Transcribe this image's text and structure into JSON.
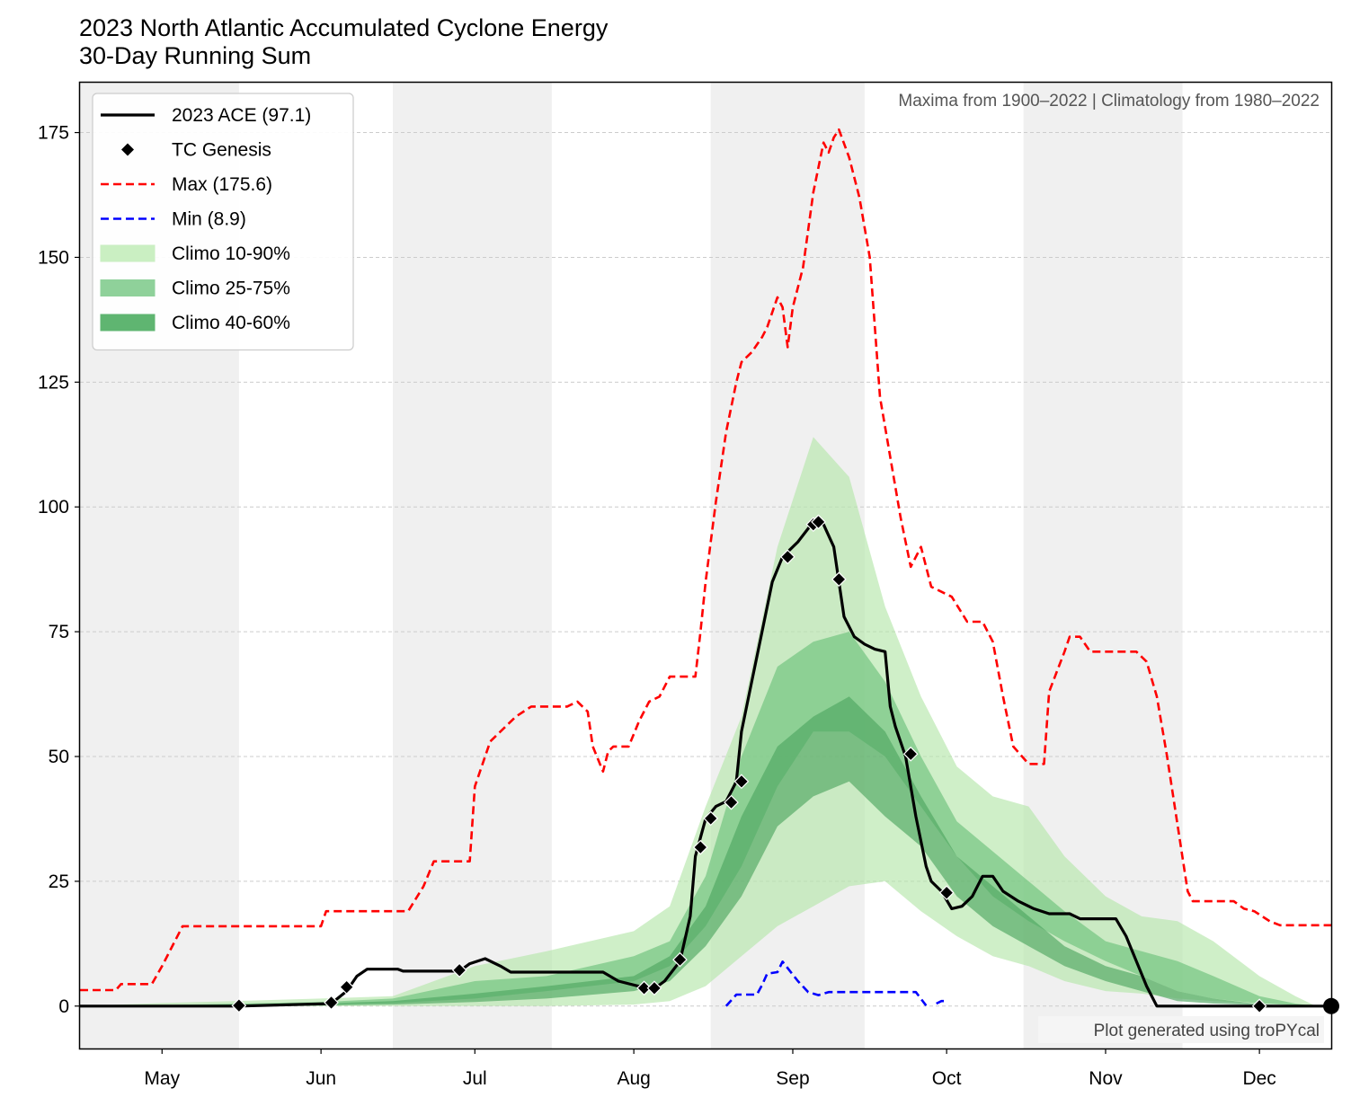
{
  "chart_data": {
    "type": "line",
    "title": "2023 North Atlantic Accumulated Cyclone Energy",
    "subtitle": "30-Day Running Sum",
    "annotation_top": "Maxima from 1900–2022 | Climatology from 1980–2022",
    "annotation_bottom": "Plot generated using troPYcal",
    "ylim": [
      -8.5,
      185
    ],
    "yticks": [
      0,
      25,
      50,
      75,
      100,
      125,
      150,
      175
    ],
    "xlim": [
      "Apr 15",
      "Dec 15"
    ],
    "xticks": [
      {
        "label": "May",
        "date": "May 1"
      },
      {
        "label": "Jun",
        "date": "Jun 1"
      },
      {
        "label": "Jul",
        "date": "Jul 1"
      },
      {
        "label": "Aug",
        "date": "Aug 1"
      },
      {
        "label": "Sep",
        "date": "Sep 1"
      },
      {
        "label": "Oct",
        "date": "Oct 1"
      },
      {
        "label": "Nov",
        "date": "Nov 1"
      },
      {
        "label": "Dec",
        "date": "Dec 1"
      }
    ],
    "shaded_periods": [
      [
        "Apr 15",
        "May 16"
      ],
      [
        "Jun 15",
        "Jul 16"
      ],
      [
        "Aug 16",
        "Sep 15"
      ],
      [
        "Oct 16",
        "Nov 16"
      ]
    ],
    "grid": "horizontal dashed",
    "legend": {
      "placement": "top-left",
      "items": [
        {
          "label": "2023 ACE (97.1)",
          "kind": "solid-line",
          "color": "#000000"
        },
        {
          "label": "TC Genesis",
          "kind": "diamond",
          "color": "#000000"
        },
        {
          "label": "Max (175.6)",
          "kind": "dashed-line",
          "color": "#ff0000"
        },
        {
          "label": "Min (8.9)",
          "kind": "dashed-line",
          "color": "#0000ff"
        },
        {
          "label": "Climo 10-90%",
          "kind": "patch",
          "color": "#caefc2"
        },
        {
          "label": "Climo 25-75%",
          "kind": "patch",
          "color": "#8fd19a"
        },
        {
          "label": "Climo 40-60%",
          "kind": "patch",
          "color": "#5fb571"
        }
      ]
    },
    "series": [
      {
        "name": "2023 ACE (97.1)",
        "color": "#000000",
        "points": [
          [
            "Apr 15",
            0
          ],
          [
            "May 16",
            0
          ],
          [
            "Jun 3",
            0.5
          ],
          [
            "Jun 6",
            3
          ],
          [
            "Jun 8",
            6
          ],
          [
            "Jun 10",
            7.4
          ],
          [
            "Jun 16",
            7.4
          ],
          [
            "Jun 17",
            7
          ],
          [
            "Jun 28",
            7
          ],
          [
            "Jun 30",
            8.5
          ],
          [
            "Jul 3",
            9.5
          ],
          [
            "Jul 6",
            8
          ],
          [
            "Jul 8",
            6.8
          ],
          [
            "Jul 26",
            6.8
          ],
          [
            "Jul 29",
            5
          ],
          [
            "Aug 3",
            3.7
          ],
          [
            "Aug 5",
            3.5
          ],
          [
            "Aug 7",
            5
          ],
          [
            "Aug 10",
            9
          ],
          [
            "Aug 12",
            18
          ],
          [
            "Aug 13",
            30
          ],
          [
            "Aug 15",
            37.5
          ],
          [
            "Aug 17",
            40
          ],
          [
            "Aug 19",
            41
          ],
          [
            "Aug 21",
            45
          ],
          [
            "Aug 22",
            55
          ],
          [
            "Aug 24",
            65
          ],
          [
            "Aug 26",
            75
          ],
          [
            "Aug 28",
            85
          ],
          [
            "Aug 30",
            90
          ],
          [
            "Sep 2",
            93
          ],
          [
            "Sep 5",
            97
          ],
          [
            "Sep 7",
            96.5
          ],
          [
            "Sep 9",
            92
          ],
          [
            "Sep 10",
            85
          ],
          [
            "Sep 11",
            78
          ],
          [
            "Sep 13",
            74
          ],
          [
            "Sep 15",
            72.5
          ],
          [
            "Sep 17",
            71.5
          ],
          [
            "Sep 19",
            71
          ],
          [
            "Sep 20",
            60
          ],
          [
            "Sep 21",
            56
          ],
          [
            "Sep 23",
            50
          ],
          [
            "Sep 25",
            38
          ],
          [
            "Sep 27",
            28
          ],
          [
            "Sep 28",
            25
          ],
          [
            "Sep 30",
            23
          ],
          [
            "Oct 2",
            19.5
          ],
          [
            "Oct 4",
            20
          ],
          [
            "Oct 6",
            22
          ],
          [
            "Oct 8",
            26
          ],
          [
            "Oct 10",
            26
          ],
          [
            "Oct 12",
            23
          ],
          [
            "Oct 15",
            21
          ],
          [
            "Oct 18",
            19.5
          ],
          [
            "Oct 21",
            18.5
          ],
          [
            "Oct 25",
            18.5
          ],
          [
            "Oct 27",
            17.5
          ],
          [
            "Nov 3",
            17.5
          ],
          [
            "Nov 5",
            14
          ],
          [
            "Nov 7",
            9
          ],
          [
            "Nov 9",
            4
          ],
          [
            "Nov 11",
            0
          ],
          [
            "Dec 15",
            0
          ]
        ]
      },
      {
        "name": "Max (175.6)",
        "color": "#ff0000",
        "points": [
          [
            "Apr 15",
            3.2
          ],
          [
            "Apr 22",
            3.2
          ],
          [
            "Apr 23",
            4.4
          ],
          [
            "Apr 29",
            4.4
          ],
          [
            "May 1",
            8
          ],
          [
            "May 5",
            16
          ],
          [
            "Jun 1",
            16
          ],
          [
            "Jun 2",
            19
          ],
          [
            "Jun 18",
            19
          ],
          [
            "Jun 21",
            24
          ],
          [
            "Jun 23",
            29
          ],
          [
            "Jun 30",
            29
          ],
          [
            "Jul 1",
            44
          ],
          [
            "Jul 4",
            53
          ],
          [
            "Jul 6",
            55
          ],
          [
            "Jul 9",
            58
          ],
          [
            "Jul 12",
            60
          ],
          [
            "Jul 19",
            60
          ],
          [
            "Jul 21",
            61
          ],
          [
            "Jul 23",
            59
          ],
          [
            "Jul 24",
            52
          ],
          [
            "Jul 26",
            47
          ],
          [
            "Jul 27",
            51
          ],
          [
            "Jul 28",
            52
          ],
          [
            "Jul 31",
            52
          ],
          [
            "Aug 2",
            57
          ],
          [
            "Aug 4",
            61
          ],
          [
            "Aug 6",
            62
          ],
          [
            "Aug 8",
            66
          ],
          [
            "Aug 13",
            66
          ],
          [
            "Aug 14",
            75
          ],
          [
            "Aug 15",
            85
          ],
          [
            "Aug 17",
            101
          ],
          [
            "Aug 19",
            115
          ],
          [
            "Aug 21",
            125
          ],
          [
            "Aug 22",
            129
          ],
          [
            "Aug 24",
            131
          ],
          [
            "Aug 26",
            134
          ],
          [
            "Aug 27",
            136
          ],
          [
            "Aug 29",
            142
          ],
          [
            "Aug 30",
            140
          ],
          [
            "Aug 31",
            132
          ],
          [
            "Sep 1",
            140
          ],
          [
            "Sep 3",
            148
          ],
          [
            "Sep 5",
            163
          ],
          [
            "Sep 7",
            173
          ],
          [
            "Sep 8",
            171
          ],
          [
            "Sep 9",
            174
          ],
          [
            "Sep 10",
            175.6
          ],
          [
            "Sep 12",
            170
          ],
          [
            "Sep 14",
            162
          ],
          [
            "Sep 16",
            150
          ],
          [
            "Sep 18",
            122
          ],
          [
            "Sep 20",
            110
          ],
          [
            "Sep 22",
            98
          ],
          [
            "Sep 24",
            88
          ],
          [
            "Sep 26",
            92
          ],
          [
            "Sep 28",
            84
          ],
          [
            "Oct 2",
            82
          ],
          [
            "Oct 5",
            77
          ],
          [
            "Oct 8",
            77
          ],
          [
            "Oct 10",
            73
          ],
          [
            "Oct 12",
            62
          ],
          [
            "Oct 14",
            52
          ],
          [
            "Oct 17",
            48.5
          ],
          [
            "Oct 20",
            48.5
          ],
          [
            "Oct 21",
            63
          ],
          [
            "Oct 24",
            71
          ],
          [
            "Oct 25",
            74
          ],
          [
            "Oct 27",
            74
          ],
          [
            "Oct 29",
            71
          ],
          [
            "Nov 7",
            71
          ],
          [
            "Nov 9",
            69
          ],
          [
            "Nov 11",
            62
          ],
          [
            "Nov 13",
            50
          ],
          [
            "Nov 17",
            23
          ],
          [
            "Nov 18",
            21
          ],
          [
            "Nov 26",
            21
          ],
          [
            "Nov 28",
            19.5
          ],
          [
            "Nov 30",
            19
          ],
          [
            "Dec 3",
            17
          ],
          [
            "Dec 5",
            16.2
          ],
          [
            "Dec 15",
            16.2
          ]
        ]
      },
      {
        "name": "Min (8.9)",
        "color": "#0000ff",
        "points": [
          [
            "Aug 19",
            0
          ],
          [
            "Aug 21",
            2.3
          ],
          [
            "Aug 25",
            2.3
          ],
          [
            "Aug 26",
            4.2
          ],
          [
            "Aug 27",
            6.5
          ],
          [
            "Aug 29",
            6.8
          ],
          [
            "Aug 30",
            8.9
          ],
          [
            "Sep 2",
            5
          ],
          [
            "Sep 4",
            2.8
          ],
          [
            "Sep 6",
            2.2
          ],
          [
            "Sep 8",
            2.8
          ],
          [
            "Sep 25",
            2.8
          ],
          [
            "Sep 27",
            0.1
          ]
        ]
      },
      {
        "name": "Min (8.9) segment",
        "color": "#0000ff",
        "points": [
          [
            "Sep 29",
            0.5
          ],
          [
            "Sep 30",
            1
          ],
          [
            "Oct 1",
            1
          ]
        ]
      }
    ],
    "genesis_points": [
      [
        "May 16",
        0.1
      ],
      [
        "Jun 3",
        0.7
      ],
      [
        "Jun 6",
        3.8
      ],
      [
        "Jun 28",
        7.2
      ],
      [
        "Aug 3",
        3.6
      ],
      [
        "Aug 5",
        3.6
      ],
      [
        "Aug 10",
        9.3
      ],
      [
        "Aug 14",
        31.8
      ],
      [
        "Aug 16",
        37.6
      ],
      [
        "Aug 20",
        40.8
      ],
      [
        "Aug 22",
        45
      ],
      [
        "Aug 31",
        90
      ],
      [
        "Sep 5",
        96.5
      ],
      [
        "Sep 6",
        97
      ],
      [
        "Sep 10",
        85.5
      ],
      [
        "Sep 24",
        50.5
      ],
      [
        "Oct 1",
        22.7
      ],
      [
        "Dec 1",
        0
      ]
    ],
    "climatology": {
      "dates": [
        "Apr 15",
        "May 1",
        "May 15",
        "Jun 1",
        "Jun 15",
        "Jul 1",
        "Jul 15",
        "Aug 1",
        "Aug 8",
        "Aug 15",
        "Aug 22",
        "Aug 29",
        "Sep 5",
        "Sep 12",
        "Sep 19",
        "Sep 26",
        "Oct 3",
        "Oct 10",
        "Oct 17",
        "Oct 24",
        "Nov 1",
        "Nov 8",
        "Nov 15",
        "Nov 22",
        "Dec 1",
        "Dec 8",
        "Dec 12"
      ],
      "p10": [
        0,
        0,
        0,
        0,
        0,
        0,
        0,
        0.3,
        1,
        4,
        10,
        16,
        20,
        24,
        25,
        19,
        14,
        10,
        8,
        5,
        3,
        2.5,
        1.5,
        1,
        0.5,
        0.2,
        0
      ],
      "p90": [
        0,
        0.6,
        1,
        1.5,
        2,
        8,
        11,
        15,
        20,
        40,
        58,
        92,
        114,
        106,
        80,
        62,
        48,
        42,
        40,
        30,
        22,
        18,
        17,
        13,
        6,
        2,
        0
      ],
      "p25": [
        0,
        0,
        0,
        0.3,
        0.6,
        1.5,
        3,
        5,
        8,
        16,
        28,
        44,
        55,
        55,
        50,
        40,
        30,
        22,
        17,
        13,
        9,
        6,
        3,
        1.5,
        0.5,
        0.2,
        0
      ],
      "p75": [
        0,
        0.2,
        0.5,
        0.8,
        1.5,
        5,
        6,
        10,
        13,
        26,
        50,
        68,
        73,
        75,
        65,
        50,
        37,
        31,
        25,
        19,
        13,
        11,
        9,
        6,
        2,
        0.5,
        0
      ],
      "p40": [
        0,
        0,
        0,
        0.1,
        0.3,
        0.8,
        1.5,
        3,
        5,
        12,
        22,
        36,
        42,
        45,
        38,
        32,
        22,
        16,
        12,
        8,
        5,
        3,
        1,
        0.5,
        0.2,
        0,
        0
      ],
      "p60": [
        0,
        0.1,
        0.3,
        0.5,
        1,
        2.5,
        4,
        6,
        10,
        20,
        38,
        52,
        58,
        62,
        55,
        42,
        30,
        24,
        18,
        12,
        8,
        6,
        3,
        1.5,
        0.4,
        0,
        0
      ]
    }
  }
}
